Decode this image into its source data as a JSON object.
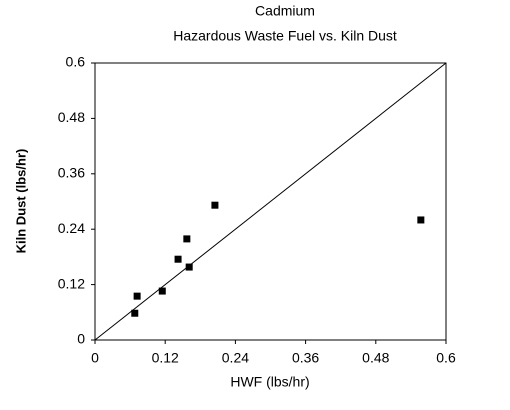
{
  "chart_data": {
    "type": "scatter",
    "title": "Cadmium",
    "subtitle": "Hazardous Waste Fuel vs. Kiln Dust",
    "x_label": "HWF (lbs/hr)",
    "y_label": "Kiln Dust (lbs/hr)",
    "x": [
      0.068,
      0.072,
      0.115,
      0.142,
      0.157,
      0.161,
      0.205,
      0.557
    ],
    "values": [
      0.058,
      0.095,
      0.106,
      0.175,
      0.219,
      0.158,
      0.292,
      0.26
    ],
    "color": "#000000",
    "xlim": [
      0,
      0.6
    ],
    "xticks": [
      0,
      0.12,
      0.24,
      0.36,
      0.48,
      0.6
    ],
    "ylim": [
      0,
      0.6
    ],
    "yticks": [
      0,
      0.12,
      0.24,
      0.36,
      0.48,
      0.6
    ],
    "grid": false
  }
}
